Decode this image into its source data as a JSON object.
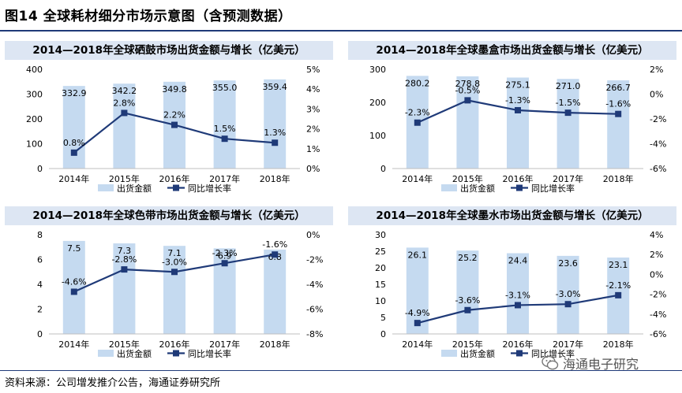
{
  "page": {
    "title": "图14 全球耗材细分市场示意图（含预测数据）",
    "source": "资料来源：公司增发推介公告，海通证券研究所",
    "watermark": "海通电子研究"
  },
  "colors": {
    "bar": "#c5daf0",
    "line": "#1f3a78",
    "header_bg": "#dde6f3"
  },
  "chart_data": [
    {
      "type": "bar",
      "title": "2014—2018年全球硒鼓市场出货金额与增长（亿美元）",
      "categories": [
        "2014年",
        "2015年",
        "2016年",
        "2017年",
        "2018年"
      ],
      "series": [
        {
          "name": "出货金额",
          "type": "bar",
          "axis": "left",
          "values": [
            332.9,
            342.2,
            349.8,
            355.0,
            359.4
          ],
          "labels": [
            "332.9",
            "342.2",
            "349.8",
            "355.0",
            "359.4"
          ]
        },
        {
          "name": "同比增长率",
          "type": "line",
          "axis": "right",
          "values": [
            0.8,
            2.8,
            2.2,
            1.5,
            1.3
          ],
          "labels": [
            "0.8%",
            "2.8%",
            "2.2%",
            "1.5%",
            "1.3%"
          ]
        }
      ],
      "ylim": [
        0,
        400
      ],
      "yticks": [
        "0",
        "100",
        "200",
        "300",
        "400"
      ],
      "y2lim": [
        0,
        5
      ],
      "y2ticks": [
        "0%",
        "1%",
        "2%",
        "3%",
        "4%",
        "5%"
      ],
      "legend": [
        "出货金额",
        "同比增长率"
      ]
    },
    {
      "type": "bar",
      "title": "2014—2018年全球墨盒市场出货金额与增长（亿美元）",
      "categories": [
        "2014年",
        "2015年",
        "2016年",
        "2017年",
        "2018年"
      ],
      "series": [
        {
          "name": "出货金额",
          "type": "bar",
          "axis": "left",
          "values": [
            280.2,
            278.8,
            275.1,
            271.0,
            266.7
          ],
          "labels": [
            "280.2",
            "278.8",
            "275.1",
            "271.0",
            "266.7"
          ]
        },
        {
          "name": "同比增长率",
          "type": "line",
          "axis": "right",
          "values": [
            -2.3,
            -0.5,
            -1.3,
            -1.5,
            -1.6
          ],
          "labels": [
            "-2.3%",
            "-0.5%",
            "-1.3%",
            "-1.5%",
            "-1.6%"
          ]
        }
      ],
      "ylim": [
        0,
        300
      ],
      "yticks": [
        "0",
        "100",
        "200",
        "300"
      ],
      "y2lim": [
        -6,
        2
      ],
      "y2ticks": [
        "-6%",
        "-4%",
        "-2%",
        "0%",
        "2%"
      ],
      "legend": [
        "出货金额",
        "同比增长率"
      ]
    },
    {
      "type": "bar",
      "title": "2014—2018年全球色带市场出货金额与增长（亿美元）",
      "categories": [
        "2014年",
        "2015年",
        "2016年",
        "2017年",
        "2018年"
      ],
      "series": [
        {
          "name": "出货金额",
          "type": "bar",
          "axis": "left",
          "values": [
            7.5,
            7.3,
            7.1,
            6.9,
            6.8
          ],
          "labels": [
            "7.5",
            "7.3",
            "7.1",
            "6.9",
            "6.8"
          ]
        },
        {
          "name": "同比增长率",
          "type": "line",
          "axis": "right",
          "values": [
            -4.6,
            -2.8,
            -3.0,
            -2.3,
            -1.6
          ],
          "labels": [
            "-4.6%",
            "-2.8%",
            "-3.0%",
            "-2.3%",
            "-1.6%"
          ]
        }
      ],
      "ylim": [
        0,
        8
      ],
      "yticks": [
        "0",
        "2",
        "4",
        "6",
        "8"
      ],
      "y2lim": [
        -8,
        0
      ],
      "y2ticks": [
        "-8%",
        "-6%",
        "-4%",
        "-2%",
        "0%"
      ],
      "legend": [
        "出货金额",
        "同比增长率"
      ]
    },
    {
      "type": "bar",
      "title": "2014—2018年全球墨水市场出货金额与增长（亿美元）",
      "categories": [
        "2014年",
        "2015年",
        "2016年",
        "2017年",
        "2018年"
      ],
      "series": [
        {
          "name": "出货金额",
          "type": "bar",
          "axis": "left",
          "values": [
            26.1,
            25.2,
            24.4,
            23.6,
            23.1
          ],
          "labels": [
            "26.1",
            "25.2",
            "24.4",
            "23.6",
            "23.1"
          ]
        },
        {
          "name": "同比增长率",
          "type": "line",
          "axis": "right",
          "values": [
            -4.9,
            -3.6,
            -3.1,
            -3.0,
            -2.1
          ],
          "labels": [
            "-4.9%",
            "-3.6%",
            "-3.1%",
            "-3.0%",
            "-2.1%"
          ]
        }
      ],
      "ylim": [
        0,
        30
      ],
      "yticks": [
        "0",
        "5",
        "10",
        "15",
        "20",
        "25",
        "30"
      ],
      "y2lim": [
        -6,
        4
      ],
      "y2ticks": [
        "-6%",
        "-4%",
        "-2%",
        "0%",
        "2%",
        "4%"
      ],
      "legend": [
        "出货金额",
        "同比增长率"
      ]
    }
  ]
}
